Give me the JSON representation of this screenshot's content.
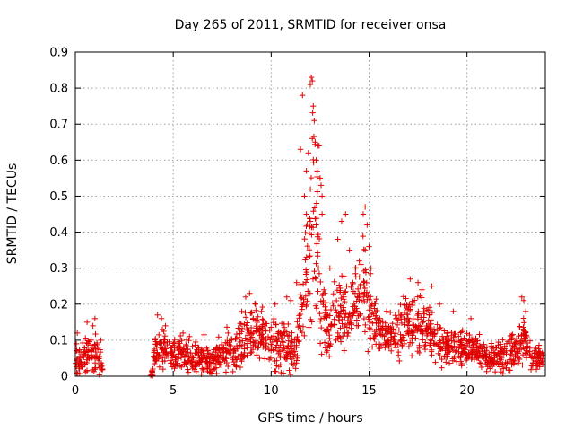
{
  "chart_data": {
    "type": "scatter",
    "title": "Day 265 of 2011, SRMTID for receiver onsa",
    "xlabel": "GPS time / hours",
    "ylabel": "SRMTID / TECUs",
    "xlim": [
      0,
      24
    ],
    "ylim": [
      0,
      0.9
    ],
    "xticks": [
      0,
      5,
      10,
      15,
      20
    ],
    "yticks": [
      0,
      0.1,
      0.2,
      0.3,
      0.4,
      0.5,
      0.6,
      0.7,
      0.8,
      0.9
    ],
    "xtick_labels": [
      "0",
      "5",
      "10",
      "15",
      "20"
    ],
    "ytick_labels": [
      "0",
      "0.1",
      "0.2",
      "0.3",
      "0.4",
      "0.5",
      "0.6",
      "0.7",
      "0.8",
      "0.9"
    ],
    "grid": true,
    "marker": "plus",
    "color": "#e00000",
    "series": [
      {
        "name": "onsa",
        "envelope": [
          [
            0.0,
            0.06,
            0.05
          ],
          [
            0.3,
            0.04,
            0.04
          ],
          [
            0.6,
            0.07,
            0.06
          ],
          [
            0.9,
            0.06,
            0.06
          ],
          [
            1.2,
            0.05,
            0.06
          ],
          [
            1.4,
            0.03,
            0.03
          ],
          [
            3.9,
            0.01,
            0.01
          ],
          [
            4.1,
            0.06,
            0.06
          ],
          [
            4.4,
            0.08,
            0.07
          ],
          [
            4.8,
            0.07,
            0.06
          ],
          [
            5.2,
            0.06,
            0.05
          ],
          [
            5.6,
            0.06,
            0.05
          ],
          [
            6.0,
            0.05,
            0.05
          ],
          [
            6.5,
            0.05,
            0.05
          ],
          [
            7.0,
            0.05,
            0.05
          ],
          [
            7.5,
            0.06,
            0.05
          ],
          [
            8.0,
            0.07,
            0.06
          ],
          [
            8.5,
            0.09,
            0.07
          ],
          [
            9.0,
            0.13,
            0.08
          ],
          [
            9.5,
            0.12,
            0.08
          ],
          [
            10.0,
            0.1,
            0.08
          ],
          [
            10.5,
            0.09,
            0.08
          ],
          [
            11.0,
            0.08,
            0.08
          ],
          [
            11.3,
            0.07,
            0.07
          ],
          [
            11.6,
            0.2,
            0.12
          ],
          [
            11.9,
            0.35,
            0.25
          ],
          [
            12.1,
            0.45,
            0.35
          ],
          [
            12.3,
            0.35,
            0.25
          ],
          [
            12.5,
            0.25,
            0.2
          ],
          [
            12.8,
            0.15,
            0.1
          ],
          [
            13.2,
            0.16,
            0.08
          ],
          [
            13.6,
            0.2,
            0.12
          ],
          [
            14.0,
            0.18,
            0.1
          ],
          [
            14.4,
            0.22,
            0.12
          ],
          [
            14.8,
            0.25,
            0.15
          ],
          [
            15.2,
            0.15,
            0.1
          ],
          [
            15.6,
            0.12,
            0.07
          ],
          [
            16.0,
            0.1,
            0.06
          ],
          [
            16.5,
            0.12,
            0.08
          ],
          [
            17.0,
            0.15,
            0.09
          ],
          [
            17.5,
            0.14,
            0.09
          ],
          [
            18.0,
            0.12,
            0.07
          ],
          [
            18.5,
            0.1,
            0.06
          ],
          [
            19.0,
            0.09,
            0.06
          ],
          [
            19.5,
            0.08,
            0.05
          ],
          [
            20.0,
            0.08,
            0.05
          ],
          [
            20.5,
            0.07,
            0.05
          ],
          [
            21.0,
            0.05,
            0.04
          ],
          [
            21.5,
            0.05,
            0.04
          ],
          [
            22.0,
            0.06,
            0.05
          ],
          [
            22.5,
            0.08,
            0.06
          ],
          [
            22.9,
            0.1,
            0.08
          ],
          [
            23.3,
            0.05,
            0.04
          ],
          [
            23.6,
            0.05,
            0.04
          ],
          [
            23.9,
            0.05,
            0.04
          ]
        ],
        "points": [
          [
            0.05,
            0.09
          ],
          [
            0.1,
            0.12
          ],
          [
            0.6,
            0.15
          ],
          [
            0.9,
            0.14
          ],
          [
            1.0,
            0.16
          ],
          [
            1.3,
            0.1
          ],
          [
            4.2,
            0.17
          ],
          [
            4.4,
            0.16
          ],
          [
            4.6,
            0.14
          ],
          [
            5.5,
            0.12
          ],
          [
            7.8,
            0.12
          ],
          [
            8.5,
            0.18
          ],
          [
            8.7,
            0.22
          ],
          [
            8.9,
            0.23
          ],
          [
            9.2,
            0.2
          ],
          [
            9.5,
            0.18
          ],
          [
            10.2,
            0.2
          ],
          [
            10.8,
            0.22
          ],
          [
            11.0,
            0.21
          ],
          [
            11.3,
            0.26
          ],
          [
            11.5,
            0.63
          ],
          [
            11.6,
            0.78
          ],
          [
            11.8,
            0.57
          ],
          [
            11.9,
            0.62
          ],
          [
            12.0,
            0.81
          ],
          [
            12.05,
            0.83
          ],
          [
            12.1,
            0.82
          ],
          [
            12.15,
            0.75
          ],
          [
            12.2,
            0.71
          ],
          [
            12.1,
            0.66
          ],
          [
            12.25,
            0.65
          ],
          [
            12.3,
            0.6
          ],
          [
            12.35,
            0.57
          ],
          [
            12.4,
            0.64
          ],
          [
            12.45,
            0.64
          ],
          [
            12.5,
            0.55
          ],
          [
            12.55,
            0.53
          ],
          [
            12.6,
            0.5
          ],
          [
            11.7,
            0.5
          ],
          [
            11.8,
            0.45
          ],
          [
            12.0,
            0.43
          ],
          [
            12.3,
            0.42
          ],
          [
            12.6,
            0.45
          ],
          [
            13.0,
            0.3
          ],
          [
            13.4,
            0.38
          ],
          [
            13.6,
            0.43
          ],
          [
            13.8,
            0.45
          ],
          [
            14.0,
            0.35
          ],
          [
            14.3,
            0.3
          ],
          [
            14.5,
            0.32
          ],
          [
            14.7,
            0.45
          ],
          [
            14.8,
            0.47
          ],
          [
            14.9,
            0.42
          ],
          [
            15.0,
            0.36
          ],
          [
            15.1,
            0.3
          ],
          [
            17.1,
            0.27
          ],
          [
            17.5,
            0.26
          ],
          [
            17.7,
            0.24
          ],
          [
            18.2,
            0.25
          ],
          [
            18.6,
            0.2
          ],
          [
            19.3,
            0.18
          ],
          [
            20.2,
            0.16
          ],
          [
            22.8,
            0.22
          ],
          [
            22.9,
            0.21
          ],
          [
            23.0,
            0.18
          ]
        ]
      }
    ]
  }
}
